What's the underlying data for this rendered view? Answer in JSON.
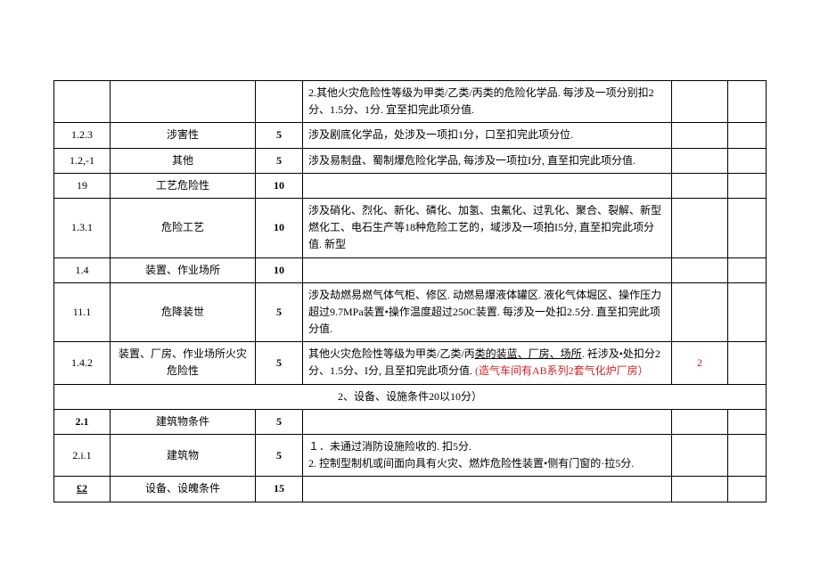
{
  "rows": [
    {
      "c1": "",
      "c2": "",
      "c3": "",
      "c4_parts": [
        {
          "t": "2.其他火灾危险性等级为甲类/乙类/丙类的危险化学品. 每涉及一项分别扣2分、1.5分、1分. 宜至扣完此项分值."
        }
      ],
      "c5": "",
      "c6": ""
    },
    {
      "c1": "1.2.3",
      "c2": "涉害性",
      "c3": "5",
      "c4_parts": [
        {
          "t": "涉及剧底化学品，处涉及一项扣1分，口至扣完此项分位."
        }
      ],
      "c5": "",
      "c6": ""
    },
    {
      "c1": "1.2,-1",
      "c2": "其他",
      "c3": "5",
      "c4_parts": [
        {
          "t": "涉及易制盘、蜀制爆危险化学品, 每涉及一项拉I分, 直至扣完此项分值."
        }
      ],
      "c5": "",
      "c6": ""
    },
    {
      "c1": "19",
      "c2": "工艺危险性",
      "c3": "10",
      "c4_parts": [],
      "c5": "",
      "c6": ""
    },
    {
      "c1": "1.3.1",
      "c2": "危险工艺",
      "c3": "10",
      "c4_parts": [
        {
          "t": "涉及硝化、烈化、新化、磷化、加氢、虫氟化、过乳化、聚合、裂解、新型燃化工、电石生产等18种危险工艺的，域涉及一项拍I5分, 直至扣完此项分值. 新型"
        }
      ],
      "c5": "",
      "c6": ""
    },
    {
      "c1": "1.4",
      "c2": "装置、作业场所",
      "c3": "10",
      "c4_parts": [],
      "c5": "",
      "c6": ""
    },
    {
      "c1": "11.1",
      "c2": "危降装世",
      "c3": "5",
      "c4_parts": [
        {
          "t": "涉及劫燃易燃气体气柜、修区. 动燃易爆液体罐区. 液化气体堀区、操作压力超过9.7MPa装置•操作温度超过250C装置. 每涉及一处扣2.5分. 直至扣完此项分值."
        }
      ],
      "c5": "",
      "c6": ""
    },
    {
      "c1": "1.4.2",
      "c2": "装置、厂房、作业场所火灾危险性",
      "c3": "5",
      "c4_parts": [
        {
          "t": "其他火灾危险性等级为甲类/乙类/丙"
        },
        {
          "t": "类的装蓝、厂房、场所",
          "u": true
        },
        {
          "t": ". 衽涉及•处扣分2分、1.5分、I分, 且至扣完此项分值.  "
        },
        {
          "t": "(造气车间有AB系列2套气化炉厂房）",
          "red": true
        }
      ],
      "c5": "2",
      "c5_red": true,
      "c6": ""
    }
  ],
  "section2": "2、设备、设施条件20以10分）",
  "rows2": [
    {
      "c1": "2.1",
      "c1_bold": true,
      "c2": "建筑物条件",
      "c3": "5",
      "c4_parts": [],
      "c5": "",
      "c6": ""
    },
    {
      "c1": "2.i.1",
      "c2": "建筑物",
      "c3": "5",
      "c4_parts": [
        {
          "t": "１．未通过消防设施险收的. 扣5分."
        },
        {
          "br": true
        },
        {
          "t": "2. 控制型制机或间面向具有火灾、燃炸危险性装置•侧有门窗的·拉5分."
        }
      ],
      "c5": "",
      "c6": ""
    },
    {
      "c1": "£2",
      "c1_bold": true,
      "c1_und": true,
      "c2": "设备、设魄条件",
      "c3": "15",
      "c4_parts": [],
      "c5": "",
      "c6": ""
    }
  ]
}
